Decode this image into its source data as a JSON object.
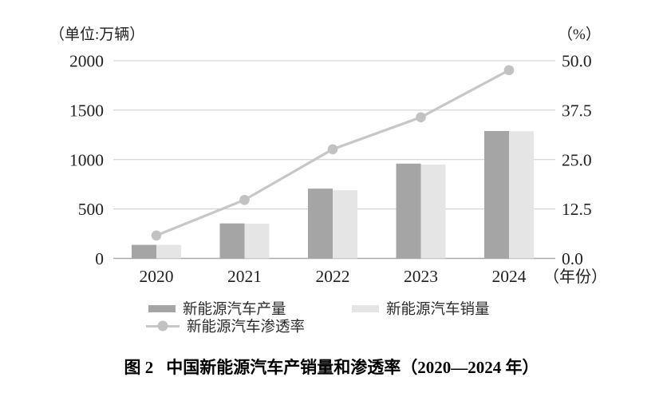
{
  "chart_data": {
    "type": "bar+line",
    "title": "图 2 中国新能源汽车产销量和渗透率（2020—2024 年）",
    "caption_label": "图 2",
    "caption_text": "中国新能源汽车产销量和渗透率（2020—2024 年）",
    "categories": [
      "2020",
      "2021",
      "2022",
      "2023",
      "2024"
    ],
    "series": [
      {
        "name": "新能源汽车产量",
        "type": "bar",
        "axis": "left",
        "color": "#a5a5a5",
        "values": [
          137,
          354,
          706,
          959,
          1289
        ]
      },
      {
        "name": "新能源汽车销量",
        "type": "bar",
        "axis": "left",
        "color": "#e5e5e5",
        "values": [
          137,
          352,
          689,
          950,
          1287
        ]
      },
      {
        "name": "新能源汽车渗透率",
        "type": "line",
        "axis": "right",
        "color": "#c7c7c7",
        "marker_color": "#c2c2c2",
        "values": [
          5.8,
          14.8,
          27.6,
          35.7,
          47.6
        ]
      }
    ],
    "left_axis": {
      "unit": "（单位:万辆）",
      "ticks": [
        "2000",
        "1500",
        "1000",
        "500",
        "0"
      ],
      "tick_values": [
        2000,
        1500,
        1000,
        500,
        0
      ],
      "min": 0,
      "max": 2000
    },
    "right_axis": {
      "unit": "（%）",
      "ticks": [
        "50.0",
        "37.5",
        "25.0",
        "12.5",
        "0.0"
      ],
      "tick_values": [
        50,
        37.5,
        25,
        12.5,
        0
      ],
      "min": 0,
      "max": 50
    },
    "x_axis": {
      "suffix": "（年份）"
    },
    "grid": true,
    "legend_position": "bottom",
    "colors": {
      "grid": "#cccccc",
      "baseline": "#a9a9a9",
      "text": "#1f1f1f"
    }
  }
}
